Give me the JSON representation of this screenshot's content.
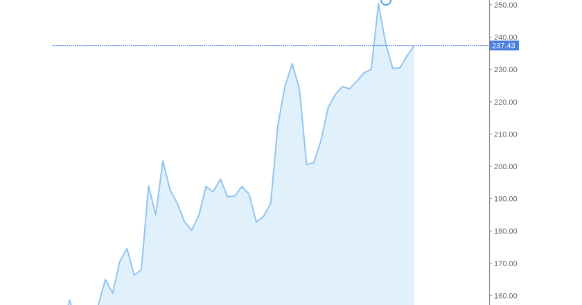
{
  "chart_data": {
    "type": "area",
    "title": "",
    "xlabel": "",
    "ylabel": "",
    "ylim": [
      155.5,
      251.5
    ],
    "y_ticks": [
      "160.00",
      "170.00",
      "180.00",
      "190.00",
      "200.00",
      "210.00",
      "220.00",
      "230.00",
      "240.00",
      "250.00"
    ],
    "grid": false,
    "y_axis_position": "right",
    "current_value": 237.43,
    "current_value_label": "237.43",
    "values": [
      150,
      158.6,
      152,
      150,
      151,
      157,
      165.0,
      160.7,
      170.6,
      174.5,
      166.3,
      168.0,
      194.0,
      185.0,
      201.7,
      192.7,
      188.5,
      182.9,
      180.2,
      184.8,
      193.8,
      192.1,
      196.1,
      190.6,
      190.8,
      193.8,
      191.4,
      182.8,
      184.5,
      188.6,
      212.7,
      224.9,
      231.8,
      224.0,
      200.6,
      201.1,
      208.0,
      218.2,
      222.3,
      224.7,
      224.0,
      226.4,
      229.0,
      230.0,
      250.4,
      238.2,
      230.3,
      230.5,
      234.3,
      237.43
    ],
    "colors": {
      "line": "#90c4f0",
      "fill": "#e1f1fb",
      "price_tag": "#4a7ee0",
      "axis": "#888888",
      "tick_text": "#666666"
    }
  }
}
